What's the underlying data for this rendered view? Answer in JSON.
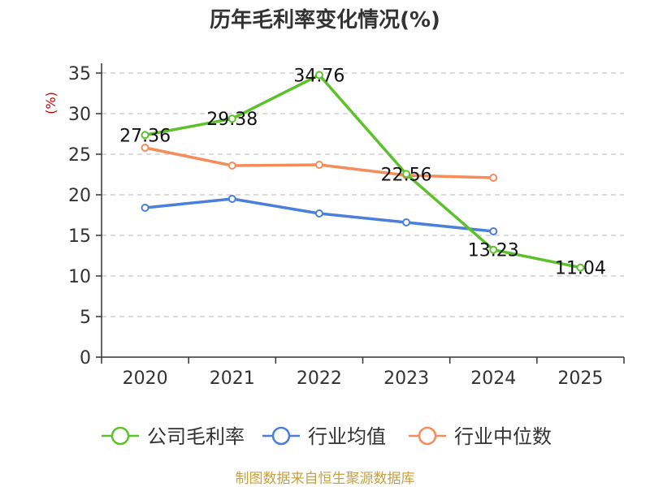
{
  "chart_data": {
    "type": "line",
    "title": "历年毛利率变化情况(%)",
    "ylabel": "(%)",
    "xlabel": "",
    "categories": [
      "2020",
      "2021",
      "2022",
      "2023",
      "2024",
      "2025"
    ],
    "ylim": [
      0,
      35
    ],
    "yticks": [
      0,
      5,
      10,
      15,
      20,
      25,
      30,
      35
    ],
    "grid": true,
    "legend_position": "bottom",
    "series": [
      {
        "name": "公司毛利率",
        "color": "#5cc12a",
        "values": [
          27.36,
          29.38,
          34.76,
          22.56,
          13.23,
          11.04
        ],
        "labels": [
          "27.36",
          "29.38",
          "34.76",
          "22.56",
          "13.23",
          "11.04"
        ],
        "show_labels": true
      },
      {
        "name": "行业均值",
        "color": "#4a7fdb",
        "values": [
          18.4,
          19.5,
          17.7,
          16.6,
          15.5,
          null
        ],
        "show_labels": false
      },
      {
        "name": "行业中位数",
        "color": "#f58c5a",
        "values": [
          25.8,
          23.6,
          23.7,
          22.4,
          22.1,
          null
        ],
        "show_labels": false
      }
    ],
    "source": "制图数据来自恒生聚源数据库"
  }
}
